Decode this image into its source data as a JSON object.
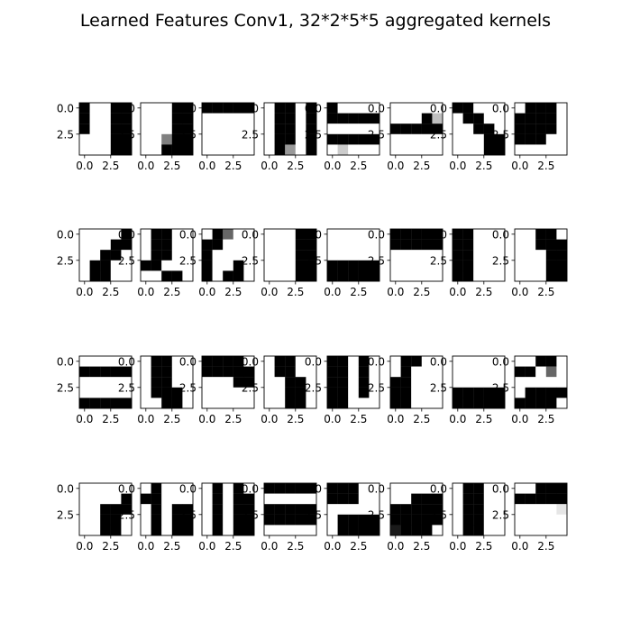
{
  "figure": {
    "title": "Learned Features Conv1, 32*2*5*5 aggregated kernels"
  },
  "chart_data": {
    "type": "heatmap",
    "title": "Learned Features Conv1, 32*2*5*5 aggregated kernels",
    "colormap": "gray",
    "value_range": [
      0,
      1
    ],
    "layout": {
      "rows": 4,
      "cols": 8
    },
    "x_ticks": [
      0.0,
      2.5
    ],
    "y_ticks": [
      0.0,
      2.5
    ],
    "x_tick_labels": [
      "0.0",
      "2.5"
    ],
    "y_tick_labels": [
      "0.0",
      "2.5"
    ],
    "kernels": [
      [
        [
          0,
          1,
          1,
          0,
          0
        ],
        [
          0,
          1,
          1,
          0,
          0
        ],
        [
          0,
          1,
          1,
          0,
          0
        ],
        [
          1,
          1,
          1,
          0,
          0
        ],
        [
          1,
          1,
          1,
          0,
          0
        ]
      ],
      [
        [
          1,
          1,
          1,
          0,
          0
        ],
        [
          1,
          1,
          1,
          0,
          0
        ],
        [
          1,
          1,
          1,
          0,
          0
        ],
        [
          1,
          1,
          0.5,
          0,
          0
        ],
        [
          1,
          1,
          0,
          0,
          0
        ]
      ],
      [
        [
          0,
          0,
          0,
          0,
          0
        ],
        [
          1,
          1,
          1,
          1,
          1
        ],
        [
          1,
          1,
          1,
          1,
          1
        ],
        [
          1,
          1,
          1,
          1,
          1
        ],
        [
          1,
          1,
          1,
          1,
          1
        ]
      ],
      [
        [
          1,
          0,
          0,
          1,
          0
        ],
        [
          1,
          0,
          0,
          1,
          0
        ],
        [
          1,
          0,
          0,
          1,
          0
        ],
        [
          1,
          0,
          0,
          1,
          0
        ],
        [
          1,
          0,
          0.6,
          1,
          0
        ]
      ],
      [
        [
          0,
          1,
          1,
          1,
          1
        ],
        [
          0,
          0,
          0,
          0,
          0
        ],
        [
          1,
          1,
          1,
          1,
          1
        ],
        [
          0,
          0,
          0,
          0,
          0
        ],
        [
          1,
          0.8,
          1,
          1,
          1
        ]
      ],
      [
        [
          1,
          1,
          1,
          1,
          1
        ],
        [
          1,
          1,
          1,
          0,
          0.75
        ],
        [
          0,
          0,
          0,
          0,
          0
        ],
        [
          1,
          1,
          1,
          1,
          1
        ],
        [
          1,
          1,
          1,
          1,
          1
        ]
      ],
      [
        [
          0,
          0,
          1,
          1,
          1
        ],
        [
          1,
          0,
          0,
          1,
          1
        ],
        [
          1,
          1,
          0,
          0,
          1
        ],
        [
          1,
          1,
          1,
          0,
          0
        ],
        [
          1,
          1,
          1,
          0,
          0
        ]
      ],
      [
        [
          1,
          0,
          0,
          0,
          1
        ],
        [
          0,
          0,
          0,
          0,
          1
        ],
        [
          0,
          0,
          0,
          0,
          1
        ],
        [
          0,
          0,
          0,
          1,
          1
        ],
        [
          1,
          1,
          1,
          1,
          1
        ]
      ],
      [
        [
          1,
          1,
          1,
          1,
          0
        ],
        [
          1,
          1,
          1,
          0,
          0
        ],
        [
          1,
          1,
          0,
          0,
          1
        ],
        [
          1,
          0,
          0,
          1,
          1
        ],
        [
          1,
          0,
          0,
          1,
          1
        ]
      ],
      [
        [
          1,
          0,
          0,
          1,
          1
        ],
        [
          1,
          0,
          0,
          1,
          1
        ],
        [
          1,
          0,
          0,
          1,
          1
        ],
        [
          0,
          0,
          1,
          1,
          1
        ],
        [
          1,
          1,
          0,
          0,
          1
        ]
      ],
      [
        [
          1,
          0,
          0.4,
          1,
          1
        ],
        [
          0,
          0,
          1,
          1,
          1
        ],
        [
          0,
          1,
          1,
          1,
          1
        ],
        [
          0,
          1,
          1,
          0,
          1
        ],
        [
          0,
          1,
          0,
          0,
          1
        ]
      ],
      [
        [
          1,
          1,
          1,
          0,
          0
        ],
        [
          1,
          1,
          1,
          0,
          0
        ],
        [
          1,
          1,
          1,
          0,
          0
        ],
        [
          1,
          1,
          1,
          0,
          0
        ],
        [
          1,
          1,
          1,
          0,
          0
        ]
      ],
      [
        [
          1,
          1,
          1,
          1,
          1
        ],
        [
          1,
          1,
          1,
          1,
          1
        ],
        [
          1,
          1,
          1,
          1,
          1
        ],
        [
          0,
          0,
          0,
          0,
          0
        ],
        [
          0,
          0,
          0,
          0,
          0
        ]
      ],
      [
        [
          0,
          0,
          0,
          0,
          0
        ],
        [
          0,
          0,
          0,
          0,
          0
        ],
        [
          1,
          1,
          1,
          1,
          1
        ],
        [
          1,
          1,
          1,
          1,
          1
        ],
        [
          1,
          1,
          1,
          1,
          1
        ]
      ],
      [
        [
          0,
          0,
          1,
          1,
          1
        ],
        [
          0,
          0,
          1,
          1,
          1
        ],
        [
          0,
          0,
          1,
          1,
          1
        ],
        [
          0,
          0,
          1,
          1,
          1
        ],
        [
          0,
          0,
          1,
          1,
          1
        ]
      ],
      [
        [
          1,
          1,
          0,
          0,
          1
        ],
        [
          1,
          1,
          0,
          0,
          0
        ],
        [
          1,
          1,
          1,
          0,
          0
        ],
        [
          1,
          1,
          1,
          0,
          0
        ],
        [
          1,
          1,
          1,
          0,
          0
        ]
      ],
      [
        [
          1,
          1,
          1,
          1,
          1
        ],
        [
          0,
          0,
          0,
          0,
          0
        ],
        [
          1,
          1,
          1,
          1,
          1
        ],
        [
          1,
          1,
          1,
          1,
          1
        ],
        [
          0,
          0,
          0,
          0,
          0
        ]
      ],
      [
        [
          1,
          0,
          0,
          1,
          1
        ],
        [
          1,
          0,
          0,
          1,
          1
        ],
        [
          1,
          0,
          0,
          1,
          1
        ],
        [
          1,
          0,
          0,
          0,
          1
        ],
        [
          1,
          1,
          0,
          0,
          1
        ]
      ],
      [
        [
          0,
          0,
          0,
          0,
          1
        ],
        [
          0,
          0,
          0,
          0,
          0
        ],
        [
          1,
          1,
          1,
          0,
          0
        ],
        [
          1,
          1,
          1,
          1,
          1
        ],
        [
          1,
          1,
          1,
          1,
          1
        ]
      ],
      [
        [
          1,
          0,
          0,
          1,
          1
        ],
        [
          1,
          0,
          0,
          1,
          1
        ],
        [
          1,
          1,
          0,
          0,
          1
        ],
        [
          1,
          1,
          0,
          0,
          1
        ],
        [
          1,
          1,
          0,
          0,
          1
        ]
      ],
      [
        [
          0,
          0,
          1,
          0,
          1
        ],
        [
          0,
          0,
          1,
          0,
          1
        ],
        [
          0,
          0,
          1,
          0,
          1
        ],
        [
          0,
          0,
          1,
          0,
          1
        ],
        [
          0,
          0,
          1,
          1,
          1
        ]
      ],
      [
        [
          1,
          0,
          0,
          1,
          1
        ],
        [
          1,
          0,
          1,
          1,
          1
        ],
        [
          0,
          0,
          1,
          1,
          1
        ],
        [
          0,
          0,
          1,
          1,
          1
        ],
        [
          0,
          0,
          1,
          1,
          1
        ]
      ],
      [
        [
          1,
          1,
          1,
          1,
          1
        ],
        [
          1,
          1,
          1,
          1,
          1
        ],
        [
          1,
          1,
          1,
          1,
          1
        ],
        [
          0,
          0,
          0,
          0,
          0
        ],
        [
          0,
          0,
          0,
          0,
          0
        ]
      ],
      [
        [
          1,
          1,
          0,
          0,
          1
        ],
        [
          0,
          0,
          1,
          0.4,
          1
        ],
        [
          1,
          1,
          1,
          1,
          1
        ],
        [
          1,
          0,
          0,
          0,
          0
        ],
        [
          0,
          0,
          0,
          0,
          1
        ]
      ],
      [
        [
          1,
          1,
          1,
          1,
          1
        ],
        [
          1,
          1,
          1,
          1,
          0
        ],
        [
          1,
          1,
          0,
          0,
          0
        ],
        [
          1,
          1,
          0,
          0,
          1
        ],
        [
          1,
          1,
          0,
          0,
          1
        ]
      ],
      [
        [
          1,
          0,
          1,
          1,
          1
        ],
        [
          0,
          0,
          1,
          1,
          1
        ],
        [
          1,
          0,
          1,
          0,
          0
        ],
        [
          1,
          0,
          1,
          0,
          0
        ],
        [
          1,
          0,
          1,
          0,
          0
        ]
      ],
      [
        [
          1,
          0,
          1,
          0,
          1
        ],
        [
          1,
          0,
          1,
          0,
          0
        ],
        [
          1,
          0,
          1,
          0,
          0
        ],
        [
          1,
          0,
          1,
          0,
          0
        ],
        [
          1,
          0,
          1,
          0,
          0
        ]
      ],
      [
        [
          0,
          0,
          0,
          0,
          0
        ],
        [
          1,
          1,
          1,
          1,
          1
        ],
        [
          0,
          0,
          0,
          0,
          0
        ],
        [
          0,
          0,
          0,
          0,
          0
        ],
        [
          1,
          1,
          1,
          1,
          1
        ]
      ],
      [
        [
          0,
          0,
          0,
          1,
          1
        ],
        [
          0,
          0,
          0,
          1,
          1
        ],
        [
          1,
          1,
          1,
          1,
          1
        ],
        [
          1,
          0,
          0,
          0,
          0
        ],
        [
          1,
          0,
          0,
          0,
          0
        ]
      ],
      [
        [
          1,
          1,
          1,
          1,
          1
        ],
        [
          1,
          1,
          0,
          0,
          0
        ],
        [
          0,
          0,
          0,
          0,
          0
        ],
        [
          0,
          0,
          0,
          0,
          0
        ],
        [
          0.1,
          0,
          0,
          0,
          1
        ]
      ],
      [
        [
          1,
          0,
          0,
          1,
          1
        ],
        [
          1,
          0,
          0,
          1,
          1
        ],
        [
          1,
          0,
          0,
          1,
          1
        ],
        [
          1,
          0,
          0,
          1,
          1
        ],
        [
          1,
          0,
          0,
          1,
          1
        ]
      ],
      [
        [
          1,
          1,
          0,
          0,
          0
        ],
        [
          0,
          0,
          0,
          0,
          0
        ],
        [
          1,
          1,
          1,
          1,
          0.9
        ],
        [
          1,
          1,
          1,
          1,
          1
        ],
        [
          1,
          1,
          1,
          1,
          1
        ]
      ]
    ]
  }
}
